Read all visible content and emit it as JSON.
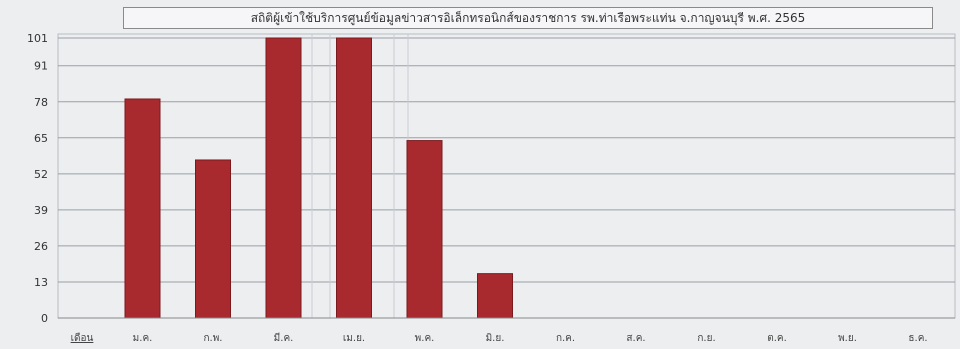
{
  "chart_data": {
    "type": "bar",
    "title": "สถิติผู้เข้าใช้บริการศูนย์ข้อมูลข่าวสารอิเล็กทรอนิกส์ของราชการ รพ.ท่าเรือพระแท่น จ.กาญจนบุรี พ.ศ. 2565",
    "xlabel": "",
    "ylabel": "",
    "x_axis_header": "เดือน",
    "categories": [
      "ม.ค.",
      "ก.พ.",
      "มี.ค.",
      "เม.ย.",
      "พ.ค.",
      "มิ.ย.",
      "ก.ค.",
      "ส.ค.",
      "ก.ย.",
      "ต.ค.",
      "พ.ย.",
      "ธ.ค."
    ],
    "values": [
      79,
      57,
      101,
      102,
      64,
      16,
      0,
      0,
      0,
      0,
      0,
      0
    ],
    "yticks": [
      0,
      13,
      26,
      39,
      52,
      65,
      78,
      91,
      101
    ],
    "ylim": [
      0,
      101
    ],
    "grid": true,
    "bar_color": "#a82a2e",
    "background_color": "#eceef0",
    "grid_color": "#9aa0a8",
    "legend": "none"
  }
}
